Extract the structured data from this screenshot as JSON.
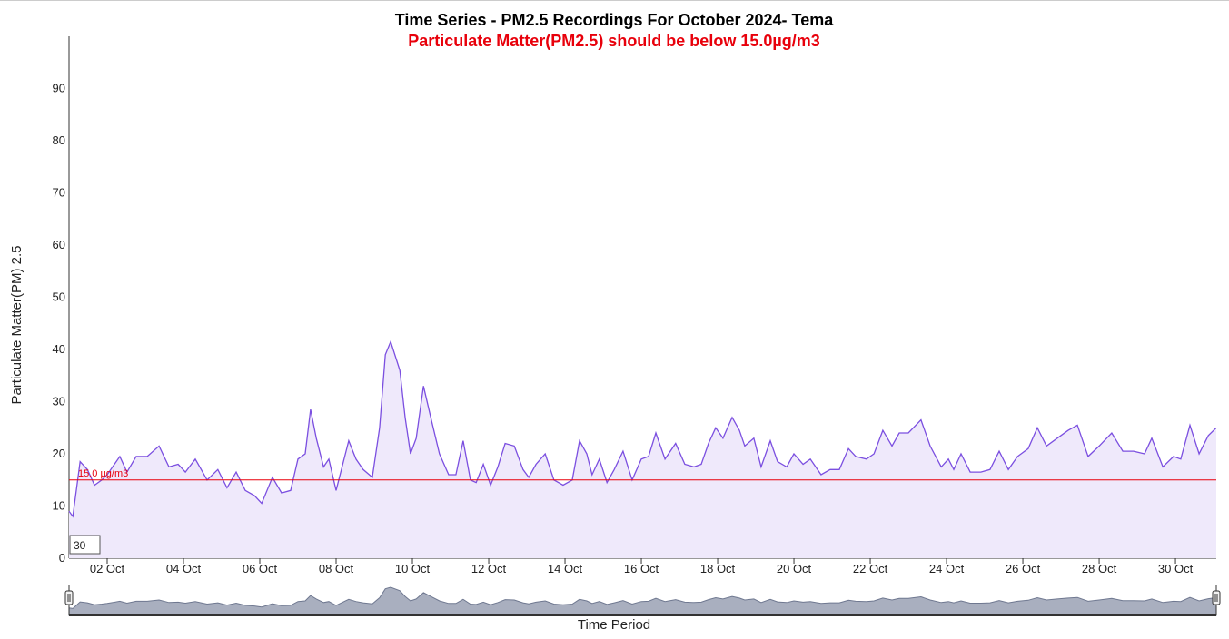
{
  "chart_data": {
    "type": "area",
    "title": "Time Series - PM2.5 Recordings For October 2024- Tema",
    "subtitle": "Particulate Matter(PM2.5) should be below 15.0µg/m3",
    "ylabel": "Particulate Matter(PM) 2.5",
    "xlabel": "Time Period",
    "range_box": "30",
    "threshold": {
      "value": 15,
      "label": "15.0 µg/m3",
      "color": "#e8000b"
    },
    "xlim": [
      1,
      31.07
    ],
    "xticks": [
      {
        "value": 2,
        "label": "02 Oct"
      },
      {
        "value": 4,
        "label": "04 Oct"
      },
      {
        "value": 6,
        "label": "06 Oct"
      },
      {
        "value": 8,
        "label": "08 Oct"
      },
      {
        "value": 10,
        "label": "10 Oct"
      },
      {
        "value": 12,
        "label": "12 Oct"
      },
      {
        "value": 14,
        "label": "14 Oct"
      },
      {
        "value": 16,
        "label": "16 Oct"
      },
      {
        "value": 18,
        "label": "18 Oct"
      },
      {
        "value": 20,
        "label": "20 Oct"
      },
      {
        "value": 22,
        "label": "22 Oct"
      },
      {
        "value": 24,
        "label": "24 Oct"
      },
      {
        "value": 26,
        "label": "26 Oct"
      },
      {
        "value": 28,
        "label": "28 Oct"
      },
      {
        "value": 30,
        "label": "30 Oct"
      }
    ],
    "ylim": [
      0,
      100
    ],
    "yticks": [
      0,
      10,
      20,
      30,
      40,
      50,
      60,
      70,
      80,
      90
    ],
    "series": [
      {
        "name": "PM2.5",
        "color": "#7b4fe0",
        "fill": "#efe9fb",
        "x": [
          1.0,
          1.1,
          1.29,
          1.48,
          1.67,
          1.86,
          2.0,
          2.33,
          2.52,
          2.76,
          3.05,
          3.36,
          3.62,
          3.86,
          4.05,
          4.31,
          4.62,
          4.9,
          5.14,
          5.38,
          5.62,
          5.86,
          6.05,
          6.33,
          6.57,
          6.81,
          7.0,
          7.19,
          7.33,
          7.48,
          7.67,
          7.81,
          8.0,
          8.33,
          8.52,
          8.71,
          8.95,
          9.14,
          9.29,
          9.43,
          9.67,
          9.81,
          9.95,
          10.1,
          10.29,
          10.48,
          10.71,
          10.95,
          11.14,
          11.33,
          11.52,
          11.67,
          11.86,
          12.05,
          12.24,
          12.43,
          12.67,
          12.9,
          13.05,
          13.24,
          13.48,
          13.71,
          13.95,
          14.19,
          14.38,
          14.57,
          14.71,
          14.9,
          15.1,
          15.29,
          15.52,
          15.76,
          16.0,
          16.19,
          16.38,
          16.62,
          16.9,
          17.14,
          17.38,
          17.57,
          17.76,
          17.95,
          18.14,
          18.38,
          18.57,
          18.71,
          18.95,
          19.14,
          19.38,
          19.57,
          19.81,
          20.0,
          20.24,
          20.43,
          20.71,
          20.95,
          21.19,
          21.43,
          21.62,
          21.9,
          22.1,
          22.33,
          22.57,
          22.76,
          23.0,
          23.33,
          23.57,
          23.86,
          24.05,
          24.19,
          24.38,
          24.62,
          24.9,
          25.14,
          25.38,
          25.62,
          25.86,
          26.14,
          26.38,
          26.62,
          26.9,
          27.19,
          27.43,
          27.71,
          28.0,
          28.33,
          28.62,
          28.9,
          29.19,
          29.38,
          29.67,
          29.95,
          30.14,
          30.38,
          30.62,
          30.86,
          31.07
        ],
        "values": [
          9,
          8,
          18.5,
          17,
          14,
          15,
          16,
          19.5,
          16.5,
          19.5,
          19.5,
          21.5,
          17.5,
          18,
          16.5,
          19,
          15,
          17,
          13.5,
          16.5,
          13,
          12,
          10.5,
          15.5,
          12.5,
          13,
          19,
          20,
          28.5,
          23,
          17.5,
          19,
          13,
          22.5,
          19,
          17,
          15.5,
          25,
          39,
          41.5,
          36,
          27,
          20,
          23,
          33,
          27,
          20,
          16,
          16,
          22.5,
          15,
          14.5,
          18,
          14,
          17.5,
          22,
          21.5,
          17,
          15.5,
          18,
          20,
          15,
          14,
          15,
          22.5,
          20,
          16,
          19,
          14.5,
          17,
          20.5,
          15,
          19,
          19.5,
          24,
          19,
          22,
          18,
          17.5,
          18,
          22,
          25,
          23,
          27,
          24.5,
          21.5,
          23,
          17.5,
          22.5,
          18.5,
          17.5,
          20,
          18,
          19,
          16,
          17,
          17,
          21,
          19.5,
          19,
          20,
          24.5,
          21.5,
          24,
          24,
          26.5,
          21.5,
          17.5,
          19,
          17,
          20,
          16.5,
          16.5,
          17,
          20.5,
          17,
          19.5,
          21,
          25,
          21.5,
          23,
          24.5,
          25.5,
          19.5,
          21.5,
          24,
          20.5,
          20.5,
          20,
          23,
          17.5,
          19.5,
          19,
          25.5,
          20,
          23.5,
          25
        ]
      }
    ]
  }
}
